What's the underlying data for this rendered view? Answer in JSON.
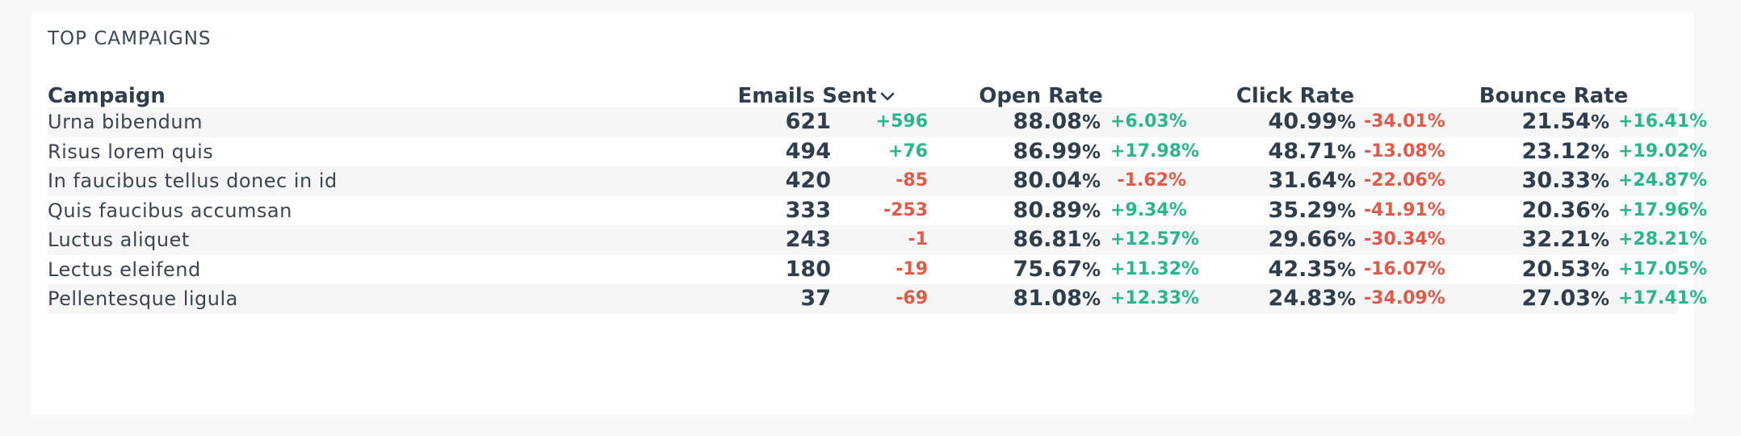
{
  "title": "TOP CAMPAIGNS",
  "columns": {
    "campaign": "Campaign",
    "emails_sent": "Emails Sent",
    "open_rate": "Open Rate",
    "click_rate": "Click Rate",
    "bounce_rate": "Bounce Rate"
  },
  "sort": {
    "column": "emails_sent",
    "direction": "desc",
    "icon": "chevron-down-icon"
  },
  "colors": {
    "positive": "#2bb58d",
    "negative": "#e05a4a"
  },
  "rows": [
    {
      "name": "Urna bibendum",
      "sent": "621",
      "sent_delta": "+596",
      "open": "88.08",
      "open_delta": "+6.03%",
      "click": "40.99",
      "click_delta": "-34.01%",
      "bounce": "21.54",
      "bounce_delta": "+16.41%"
    },
    {
      "name": "Risus lorem quis",
      "sent": "494",
      "sent_delta": "+76",
      "open": "86.99",
      "open_delta": "+17.98%",
      "click": "48.71",
      "click_delta": "-13.08%",
      "bounce": "23.12",
      "bounce_delta": "+19.02%"
    },
    {
      "name": "In faucibus tellus donec in id",
      "sent": "420",
      "sent_delta": "-85",
      "open": "80.04",
      "open_delta": "-1.62%",
      "click": "31.64",
      "click_delta": "-22.06%",
      "bounce": "30.33",
      "bounce_delta": "+24.87%"
    },
    {
      "name": "Quis faucibus accumsan",
      "sent": "333",
      "sent_delta": "-253",
      "open": "80.89",
      "open_delta": "+9.34%",
      "click": "35.29",
      "click_delta": "-41.91%",
      "bounce": "20.36",
      "bounce_delta": "+17.96%"
    },
    {
      "name": "Luctus aliquet",
      "sent": "243",
      "sent_delta": "-1",
      "open": "86.81",
      "open_delta": "+12.57%",
      "click": "29.66",
      "click_delta": "-30.34%",
      "bounce": "32.21",
      "bounce_delta": "+28.21%"
    },
    {
      "name": "Lectus eleifend",
      "sent": "180",
      "sent_delta": "-19",
      "open": "75.67",
      "open_delta": "+11.32%",
      "click": "42.35",
      "click_delta": "-16.07%",
      "bounce": "20.53",
      "bounce_delta": "+17.05%"
    },
    {
      "name": "Pellentesque ligula",
      "sent": "37",
      "sent_delta": "-69",
      "open": "81.08",
      "open_delta": "+12.33%",
      "click": "24.83",
      "click_delta": "-34.09%",
      "bounce": "27.03",
      "bounce_delta": "+17.41%"
    }
  ]
}
